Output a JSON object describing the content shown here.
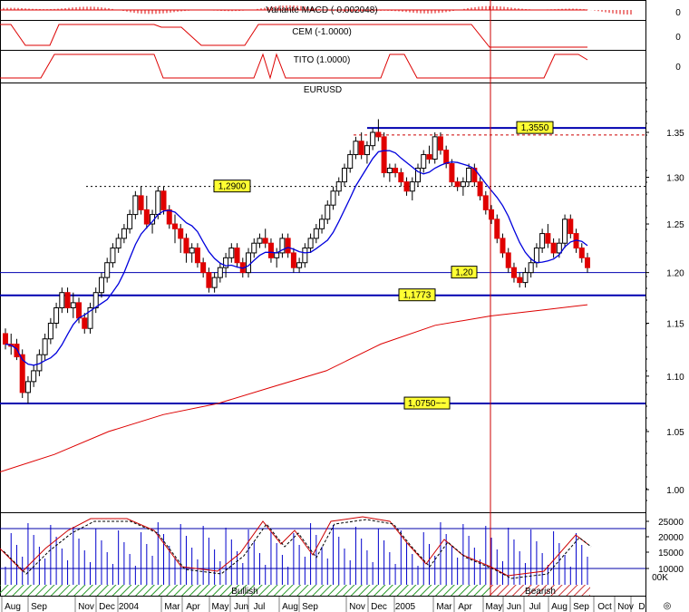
{
  "chart_data": {
    "type": "candlestick",
    "title": "EURUSD",
    "colors": {
      "up": "#ffffff",
      "down": "#e00000",
      "ma": "#0000dd",
      "ma_long": "#dd0000",
      "level": "#0000b0",
      "dashed": "#cc0000",
      "vline": "#cc0000"
    },
    "panels": {
      "macd": {
        "label": "Variante MACD (-0.002048)",
        "value": "0"
      },
      "cem": {
        "label": "CEM (-1.0000)",
        "value": "0"
      },
      "tito": {
        "label": "TITO (1.0000)",
        "value": "0"
      }
    },
    "y_axis": {
      "ylim": [
        0.96,
        1.4
      ],
      "ticks": [
        "1.35",
        "1.30",
        "1.25",
        "1.20",
        "1.15",
        "1.10",
        "1.05",
        "1.00"
      ]
    },
    "levels": [
      {
        "label": "1,3550",
        "value": 1.355,
        "style": "solid"
      },
      {
        "value": 1.347,
        "style": "dashed"
      },
      {
        "label": "1,2900",
        "value": 1.29,
        "style": "dashed"
      },
      {
        "label": "1,20",
        "value": 1.2,
        "style": "thin"
      },
      {
        "label": "1,1773",
        "value": 1.1773,
        "style": "solid"
      },
      {
        "label": "1,0750~~",
        "value": 1.075,
        "style": "solid"
      }
    ],
    "months": [
      "Aug",
      "Sep",
      "Nov",
      "Dec",
      "2004",
      "Mar",
      "Apr",
      "May",
      "Jun",
      "Jul",
      "Aug",
      "Sep",
      "Nov",
      "Dec",
      "2005",
      "Mar",
      "Apr",
      "May",
      "Jun",
      "Jul",
      "Aug",
      "Sep",
      "Oct",
      "Nov",
      "D"
    ],
    "ohlc": [
      [
        1.14,
        1.145,
        1.125,
        1.13
      ],
      [
        1.13,
        1.14,
        1.12,
        1.128
      ],
      [
        1.13,
        1.135,
        1.115,
        1.118
      ],
      [
        1.12,
        1.125,
        1.08,
        1.085
      ],
      [
        1.085,
        1.1,
        1.075,
        1.095
      ],
      [
        1.095,
        1.11,
        1.09,
        1.105
      ],
      [
        1.105,
        1.125,
        1.1,
        1.12
      ],
      [
        1.12,
        1.14,
        1.115,
        1.135
      ],
      [
        1.135,
        1.155,
        1.13,
        1.15
      ],
      [
        1.15,
        1.17,
        1.145,
        1.165
      ],
      [
        1.165,
        1.185,
        1.16,
        1.18
      ],
      [
        1.18,
        1.185,
        1.16,
        1.165
      ],
      [
        1.165,
        1.18,
        1.155,
        1.17
      ],
      [
        1.17,
        1.175,
        1.15,
        1.155
      ],
      [
        1.155,
        1.16,
        1.14,
        1.145
      ],
      [
        1.145,
        1.17,
        1.14,
        1.165
      ],
      [
        1.165,
        1.185,
        1.16,
        1.18
      ],
      [
        1.18,
        1.2,
        1.175,
        1.195
      ],
      [
        1.195,
        1.215,
        1.19,
        1.21
      ],
      [
        1.21,
        1.23,
        1.205,
        1.225
      ],
      [
        1.225,
        1.24,
        1.22,
        1.235
      ],
      [
        1.235,
        1.25,
        1.23,
        1.245
      ],
      [
        1.245,
        1.265,
        1.24,
        1.26
      ],
      [
        1.26,
        1.285,
        1.255,
        1.28
      ],
      [
        1.28,
        1.29,
        1.26,
        1.265
      ],
      [
        1.265,
        1.28,
        1.245,
        1.25
      ],
      [
        1.25,
        1.265,
        1.24,
        1.26
      ],
      [
        1.26,
        1.29,
        1.255,
        1.285
      ],
      [
        1.285,
        1.29,
        1.26,
        1.265
      ],
      [
        1.265,
        1.27,
        1.245,
        1.25
      ],
      [
        1.25,
        1.26,
        1.23,
        1.245
      ],
      [
        1.245,
        1.25,
        1.22,
        1.235
      ],
      [
        1.235,
        1.24,
        1.21,
        1.22
      ],
      [
        1.22,
        1.23,
        1.21,
        1.225
      ],
      [
        1.225,
        1.23,
        1.205,
        1.21
      ],
      [
        1.21,
        1.215,
        1.195,
        1.2
      ],
      [
        1.2,
        1.205,
        1.18,
        1.185
      ],
      [
        1.185,
        1.2,
        1.18,
        1.195
      ],
      [
        1.195,
        1.21,
        1.19,
        1.205
      ],
      [
        1.205,
        1.22,
        1.195,
        1.215
      ],
      [
        1.215,
        1.23,
        1.21,
        1.225
      ],
      [
        1.225,
        1.23,
        1.205,
        1.21
      ],
      [
        1.21,
        1.215,
        1.195,
        1.2
      ],
      [
        1.2,
        1.225,
        1.195,
        1.22
      ],
      [
        1.22,
        1.235,
        1.215,
        1.23
      ],
      [
        1.23,
        1.24,
        1.225,
        1.235
      ],
      [
        1.235,
        1.245,
        1.225,
        1.23
      ],
      [
        1.23,
        1.235,
        1.21,
        1.215
      ],
      [
        1.215,
        1.225,
        1.205,
        1.22
      ],
      [
        1.22,
        1.24,
        1.215,
        1.235
      ],
      [
        1.235,
        1.24,
        1.215,
        1.22
      ],
      [
        1.22,
        1.225,
        1.2,
        1.205
      ],
      [
        1.205,
        1.215,
        1.2,
        1.21
      ],
      [
        1.21,
        1.23,
        1.205,
        1.225
      ],
      [
        1.225,
        1.24,
        1.22,
        1.235
      ],
      [
        1.235,
        1.25,
        1.23,
        1.245
      ],
      [
        1.245,
        1.26,
        1.24,
        1.255
      ],
      [
        1.255,
        1.275,
        1.25,
        1.27
      ],
      [
        1.27,
        1.29,
        1.265,
        1.285
      ],
      [
        1.285,
        1.3,
        1.28,
        1.295
      ],
      [
        1.295,
        1.315,
        1.29,
        1.31
      ],
      [
        1.31,
        1.33,
        1.305,
        1.325
      ],
      [
        1.325,
        1.345,
        1.32,
        1.34
      ],
      [
        1.34,
        1.35,
        1.32,
        1.325
      ],
      [
        1.325,
        1.34,
        1.315,
        1.335
      ],
      [
        1.335,
        1.355,
        1.33,
        1.35
      ],
      [
        1.35,
        1.365,
        1.34,
        1.345
      ],
      [
        1.345,
        1.35,
        1.3,
        1.305
      ],
      [
        1.305,
        1.315,
        1.295,
        1.31
      ],
      [
        1.31,
        1.315,
        1.3,
        1.305
      ],
      [
        1.305,
        1.31,
        1.29,
        1.295
      ],
      [
        1.295,
        1.3,
        1.28,
        1.285
      ],
      [
        1.285,
        1.3,
        1.275,
        1.295
      ],
      [
        1.295,
        1.315,
        1.29,
        1.31
      ],
      [
        1.31,
        1.33,
        1.305,
        1.325
      ],
      [
        1.325,
        1.335,
        1.315,
        1.32
      ],
      [
        1.32,
        1.35,
        1.315,
        1.345
      ],
      [
        1.345,
        1.35,
        1.325,
        1.33
      ],
      [
        1.33,
        1.335,
        1.31,
        1.315
      ],
      [
        1.315,
        1.32,
        1.29,
        1.295
      ],
      [
        1.295,
        1.3,
        1.285,
        1.29
      ],
      [
        1.29,
        1.3,
        1.28,
        1.295
      ],
      [
        1.295,
        1.315,
        1.29,
        1.31
      ],
      [
        1.31,
        1.315,
        1.29,
        1.295
      ],
      [
        1.295,
        1.3,
        1.275,
        1.28
      ],
      [
        1.28,
        1.285,
        1.26,
        1.265
      ],
      [
        1.265,
        1.27,
        1.25,
        1.255
      ],
      [
        1.255,
        1.26,
        1.23,
        1.235
      ],
      [
        1.235,
        1.24,
        1.215,
        1.22
      ],
      [
        1.22,
        1.225,
        1.2,
        1.205
      ],
      [
        1.205,
        1.21,
        1.19,
        1.195
      ],
      [
        1.195,
        1.2,
        1.185,
        1.19
      ],
      [
        1.19,
        1.205,
        1.185,
        1.2
      ],
      [
        1.2,
        1.215,
        1.195,
        1.21
      ],
      [
        1.21,
        1.23,
        1.205,
        1.225
      ],
      [
        1.225,
        1.245,
        1.22,
        1.24
      ],
      [
        1.24,
        1.25,
        1.225,
        1.23
      ],
      [
        1.23,
        1.235,
        1.215,
        1.22
      ],
      [
        1.22,
        1.235,
        1.215,
        1.23
      ],
      [
        1.23,
        1.26,
        1.225,
        1.255
      ],
      [
        1.255,
        1.26,
        1.235,
        1.24
      ],
      [
        1.24,
        1.245,
        1.22,
        1.225
      ],
      [
        1.225,
        1.23,
        1.21,
        1.215
      ],
      [
        1.215,
        1.22,
        1.2,
        1.205
      ]
    ],
    "stochastic": {
      "ticks": [
        "25000",
        "20000",
        "15000",
        "10000"
      ],
      "zones": [
        "Bullish",
        "Bearish"
      ],
      "marker": "00K",
      "marker_extra": "◎"
    }
  }
}
